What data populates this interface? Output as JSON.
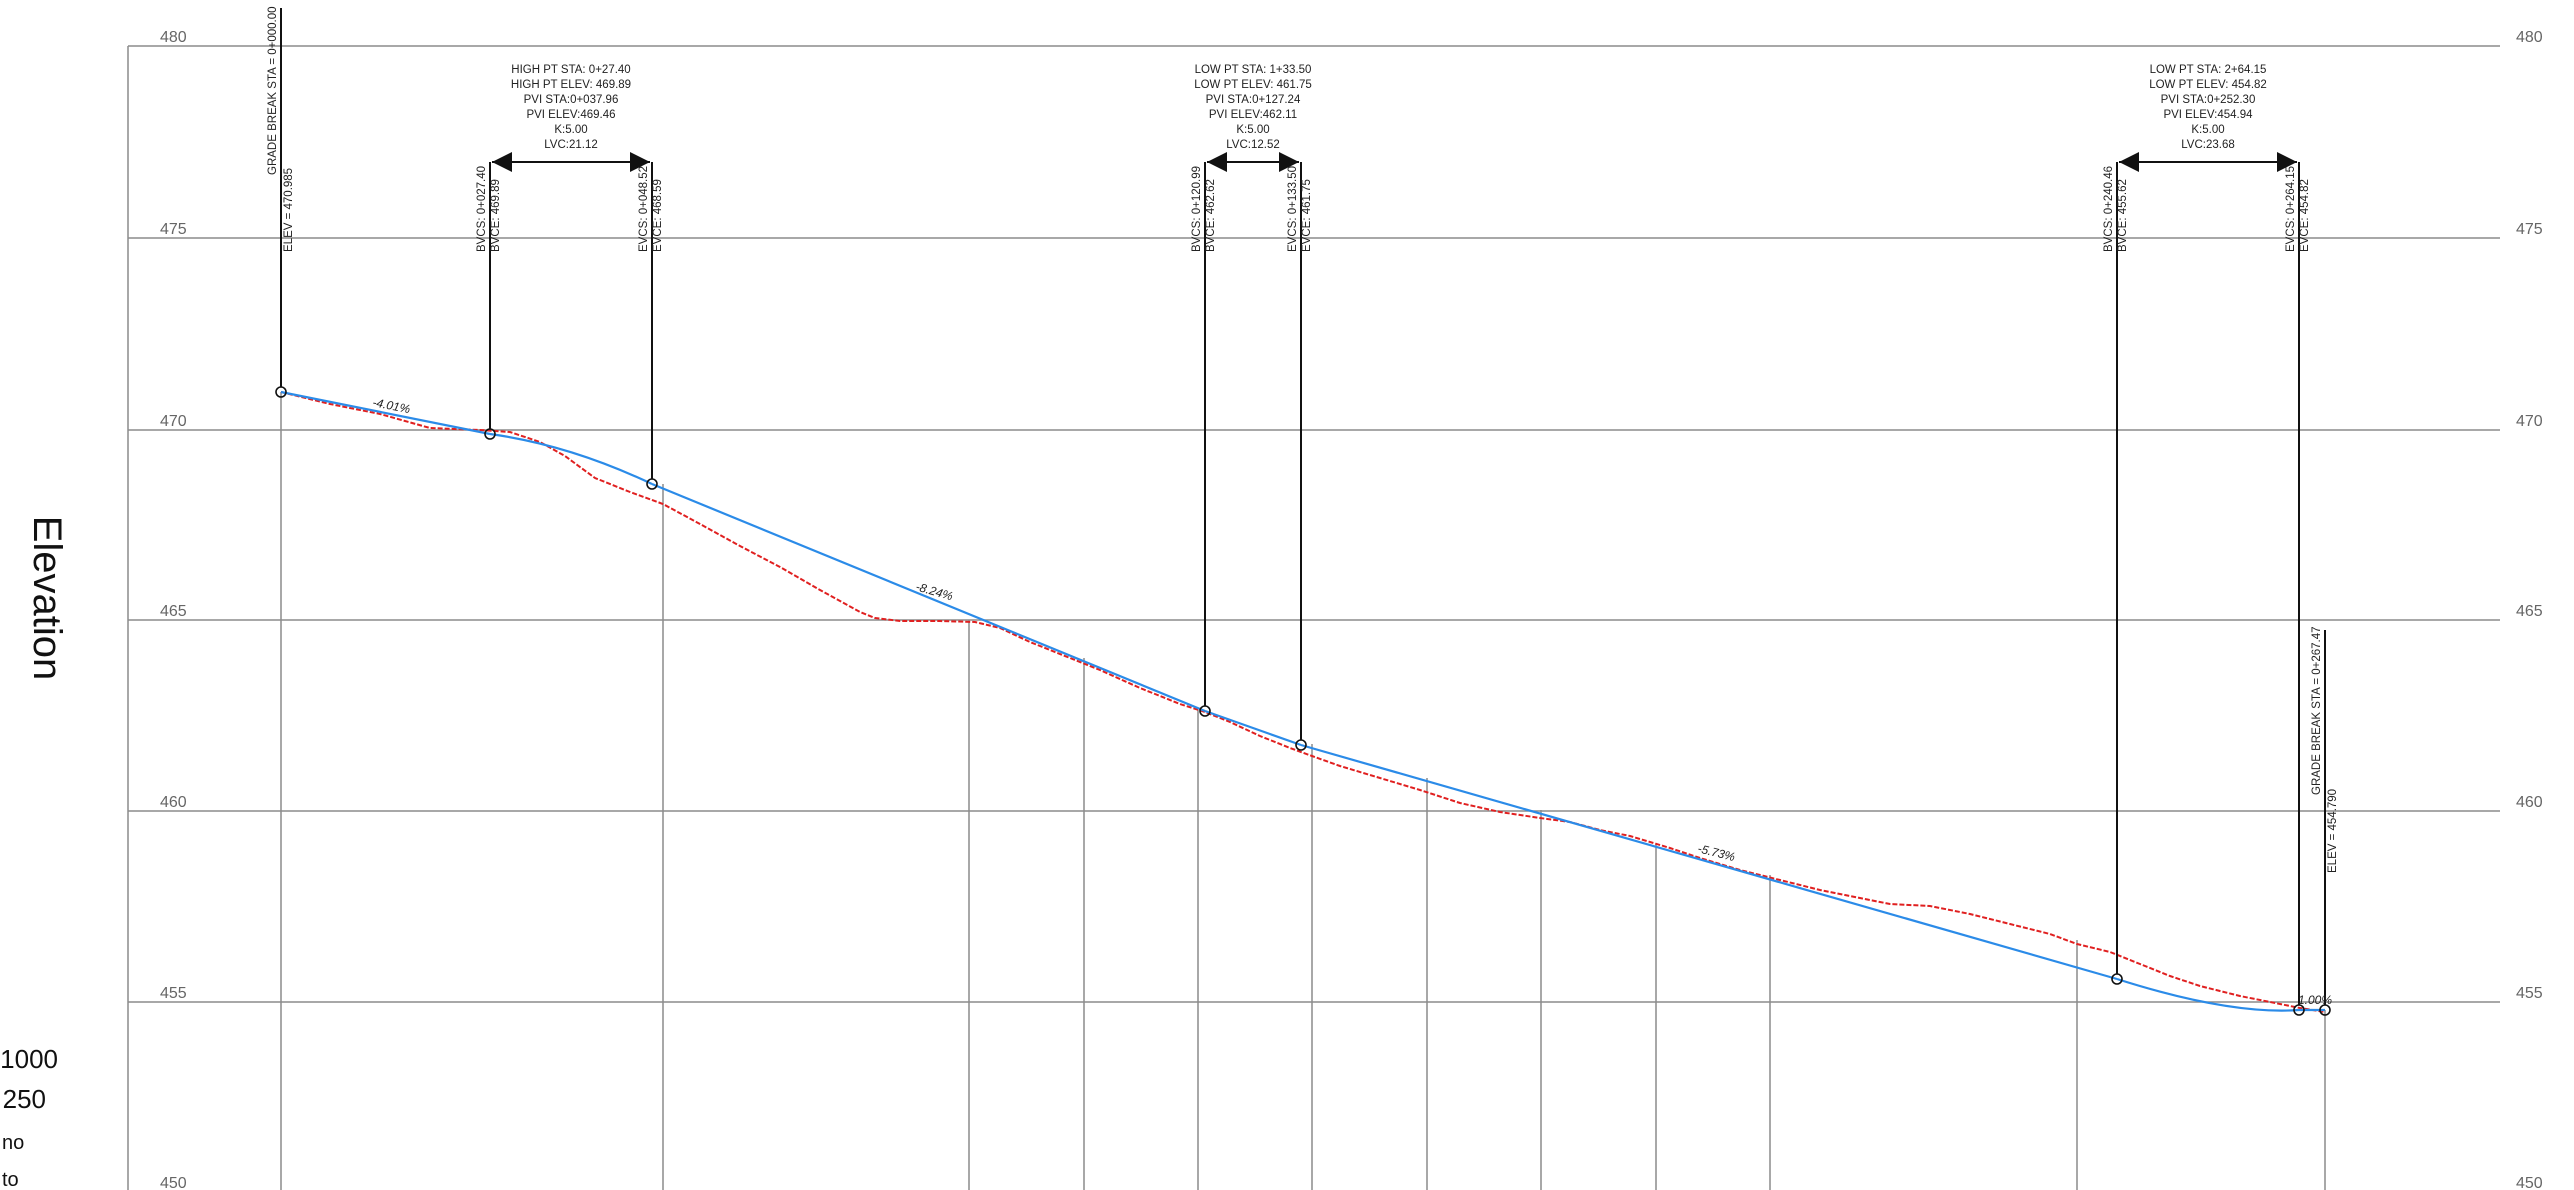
{
  "axis_title": "Elevation",
  "y_ticks": [
    480,
    475,
    470,
    465,
    460,
    455,
    450
  ],
  "legend": {
    "line1": "1000",
    "line2": "250",
    "line3": "no",
    "line4": "to"
  },
  "grade_breaks": [
    {
      "sta_label": "GRADE BREAK STA = 0+000.00",
      "elev_label": "ELEV = 470.985"
    },
    {
      "sta_label": "GRADE BREAK STA = 0+267.47",
      "elev_label": "ELEV = 454.790"
    }
  ],
  "vertical_curves": [
    {
      "info": [
        "HIGH PT STA: 0+27.40",
        "HIGH PT ELEV: 469.89",
        "PVI STA:0+037.96",
        "PVI ELEV:469.46",
        "K:5.00",
        "LVC:21.12"
      ],
      "bvc_sta": "BVCS: 0+027.40",
      "bvc_elev": "BVCE: 469.89",
      "evc_sta": "EVCS: 0+048.52",
      "evc_elev": "EVCE: 468.59"
    },
    {
      "info": [
        "LOW PT STA: 1+33.50",
        "LOW PT ELEV: 461.75",
        "PVI STA:0+127.24",
        "PVI ELEV:462.11",
        "K:5.00",
        "LVC:12.52"
      ],
      "bvc_sta": "BVCS: 0+120.99",
      "bvc_elev": "BVCE: 462.62",
      "evc_sta": "EVCS: 0+133.50",
      "evc_elev": "EVCE: 461.75"
    },
    {
      "info": [
        "LOW PT STA: 2+64.15",
        "LOW PT ELEV: 454.82",
        "PVI STA:0+252.30",
        "PVI ELEV:454.94",
        "K:5.00",
        "LVC:23.68"
      ],
      "bvc_sta": "BVCS: 0+240.46",
      "bvc_elev": "BVCE: 455.62",
      "evc_sta": "EVCS: 0+264.15",
      "evc_elev": "EVCE: 454.82"
    }
  ],
  "grades": [
    "-4.01%",
    "-8.24%",
    "-5.73%",
    "1.00%"
  ],
  "colors": {
    "design_line": "#2b8be8",
    "ground_line": "#e02020",
    "grid": "#8c8c8c",
    "leader": "#111111"
  }
}
